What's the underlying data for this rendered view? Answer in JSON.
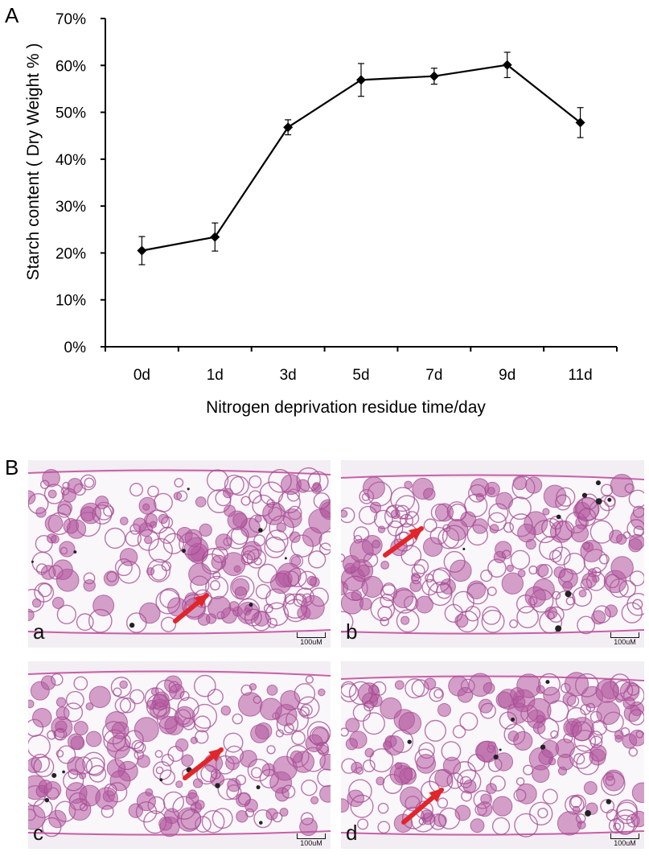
{
  "panel_labels": {
    "a": "A",
    "b": "B"
  },
  "chart_data": {
    "type": "line",
    "xlabel": "Nitrogen deprivation residue time/day",
    "ylabel": "Starch content ( Dry Weight % )",
    "categories": [
      "0d",
      "1d",
      "3d",
      "5d",
      "7d",
      "9d",
      "11d"
    ],
    "yticks": [
      "0%",
      "10%",
      "20%",
      "30%",
      "40%",
      "50%",
      "60%",
      "70%"
    ],
    "ylim": [
      0,
      70
    ],
    "series": [
      {
        "values": [
          20.5,
          23.4,
          46.8,
          56.9,
          57.7,
          60.1,
          47.8
        ],
        "errors": [
          3.0,
          3.0,
          1.6,
          3.5,
          1.7,
          2.7,
          3.2
        ]
      }
    ],
    "grid": false,
    "marker": "diamond"
  },
  "micrographs": [
    {
      "label": "a",
      "scale_bar": "100uM"
    },
    {
      "label": "b",
      "scale_bar": "100uM"
    },
    {
      "label": "c",
      "scale_bar": "100uM"
    },
    {
      "label": "d",
      "scale_bar": "100uM"
    }
  ]
}
